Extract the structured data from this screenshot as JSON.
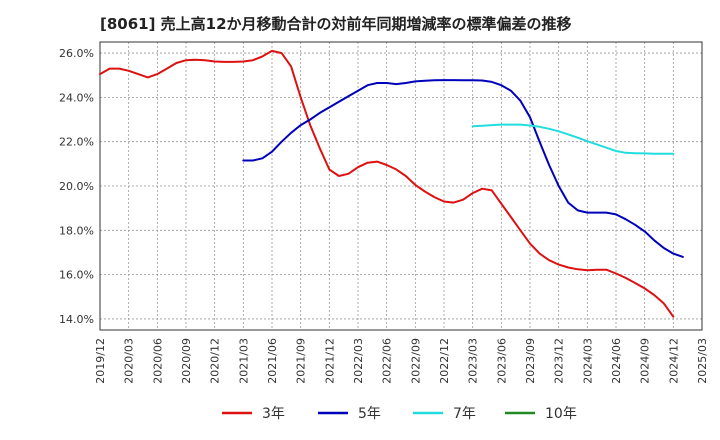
{
  "chart_data": {
    "type": "line",
    "title": "[8061]  売上高12か月移動合計の対前年同期増減率の標準偏差の推移",
    "xlabel": "",
    "ylabel": "",
    "ylim": [
      13.5,
      26.5
    ],
    "y_ticks": [
      14,
      16,
      18,
      20,
      22,
      24,
      26
    ],
    "y_tick_labels": [
      "14.0%",
      "16.0%",
      "18.0%",
      "20.0%",
      "22.0%",
      "24.0%",
      "26.0%"
    ],
    "x_tick_labels": [
      "2019/12",
      "2020/03",
      "2020/06",
      "2020/09",
      "2020/12",
      "2021/03",
      "2021/06",
      "2021/09",
      "2021/12",
      "2022/03",
      "2022/06",
      "2022/09",
      "2022/12",
      "2023/03",
      "2023/06",
      "2023/09",
      "2023/12",
      "2024/03",
      "2024/06",
      "2024/09",
      "2024/12",
      "2025/03"
    ],
    "grid": true,
    "legend_position": "bottom",
    "series": [
      {
        "name": "3年",
        "color": "#dd1111",
        "start_month": 0,
        "values": [
          25.05,
          25.3,
          25.3,
          25.2,
          25.05,
          24.9,
          25.05,
          25.3,
          25.55,
          25.68,
          25.7,
          25.68,
          25.62,
          25.6,
          25.6,
          25.62,
          25.68,
          25.85,
          26.1,
          26.0,
          25.4,
          24.0,
          22.75,
          21.7,
          20.75,
          20.45,
          20.55,
          20.85,
          21.05,
          21.1,
          20.95,
          20.75,
          20.45,
          20.05,
          19.75,
          19.5,
          19.3,
          19.25,
          19.38,
          19.68,
          19.88,
          19.8,
          19.2,
          18.6,
          18.0,
          17.4,
          16.95,
          16.65,
          16.45,
          16.32,
          16.24,
          16.2,
          16.22,
          16.22,
          16.05,
          15.85,
          15.62,
          15.38,
          15.08,
          14.7,
          14.1
        ]
      },
      {
        "name": "5年",
        "color": "#0000bb",
        "start_month": 15,
        "values": [
          21.15,
          21.15,
          21.25,
          21.55,
          22.0,
          22.4,
          22.75,
          23.0,
          23.3,
          23.55,
          23.8,
          24.05,
          24.3,
          24.55,
          24.65,
          24.65,
          24.6,
          24.65,
          24.72,
          24.75,
          24.77,
          24.78,
          24.78,
          24.77,
          24.77,
          24.76,
          24.7,
          24.55,
          24.3,
          23.85,
          23.1,
          22.0,
          20.95,
          20.0,
          19.25,
          18.9,
          18.8,
          18.8,
          18.8,
          18.72,
          18.5,
          18.25,
          17.95,
          17.55,
          17.2,
          16.95,
          16.8
        ]
      },
      {
        "name": "7年",
        "color": "#22dddd",
        "start_month": 39,
        "values": [
          22.7,
          22.72,
          22.75,
          22.77,
          22.77,
          22.77,
          22.73,
          22.67,
          22.58,
          22.47,
          22.33,
          22.18,
          22.02,
          21.88,
          21.73,
          21.58,
          21.5,
          21.48,
          21.47,
          21.46,
          21.46,
          21.46
        ]
      },
      {
        "name": "10年",
        "color": "#228822",
        "start_month": 0,
        "values": []
      }
    ]
  }
}
